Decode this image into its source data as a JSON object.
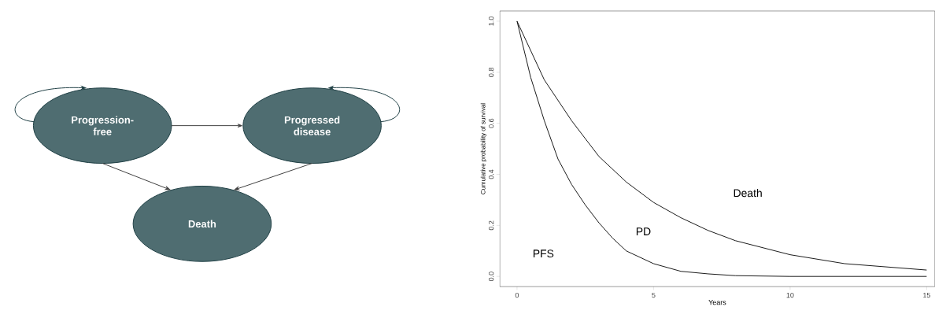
{
  "chart_data": [
    {
      "type": "other",
      "annotations": [
        "Progression-free",
        "Progressed disease",
        "Death"
      ]
    },
    {
      "type": "line",
      "xlabel": "Years",
      "ylabel": "Cumulative probability of survival",
      "xlim": [
        -0.63,
        15.3
      ],
      "ylim": [
        -0.04,
        1.04
      ],
      "xticks": [
        0,
        5,
        10,
        15
      ],
      "yticks": [
        {
          "value": 0,
          "label": "0.0"
        },
        {
          "value": 0.2,
          "label": "0.2"
        },
        {
          "value": 0.4,
          "label": "0.4"
        },
        {
          "value": 0.6,
          "label": "0.6"
        },
        {
          "value": 0.8,
          "label": "0.8"
        },
        {
          "value": 1,
          "label": "1.0"
        }
      ],
      "series": [
        {
          "color": "#000000",
          "x": [
            0,
            0.5,
            1,
            1.5,
            2,
            2.5,
            3,
            3.5,
            4,
            5,
            6,
            7,
            8,
            10,
            12,
            15
          ],
          "values": [
            1.0,
            0.78,
            0.61,
            0.46,
            0.36,
            0.28,
            0.21,
            0.15,
            0.1,
            0.05,
            0.02,
            0.01,
            0.003,
            0,
            0,
            0
          ]
        },
        {
          "color": "#000000",
          "x": [
            0,
            1,
            2,
            3,
            4,
            5,
            6,
            7,
            8,
            10,
            12,
            15
          ],
          "values": [
            1.0,
            0.77,
            0.61,
            0.47,
            0.37,
            0.29,
            0.23,
            0.18,
            0.14,
            0.085,
            0.05,
            0.025
          ]
        }
      ],
      "annotations": [
        "PFS",
        "PD",
        "Death"
      ]
    }
  ]
}
